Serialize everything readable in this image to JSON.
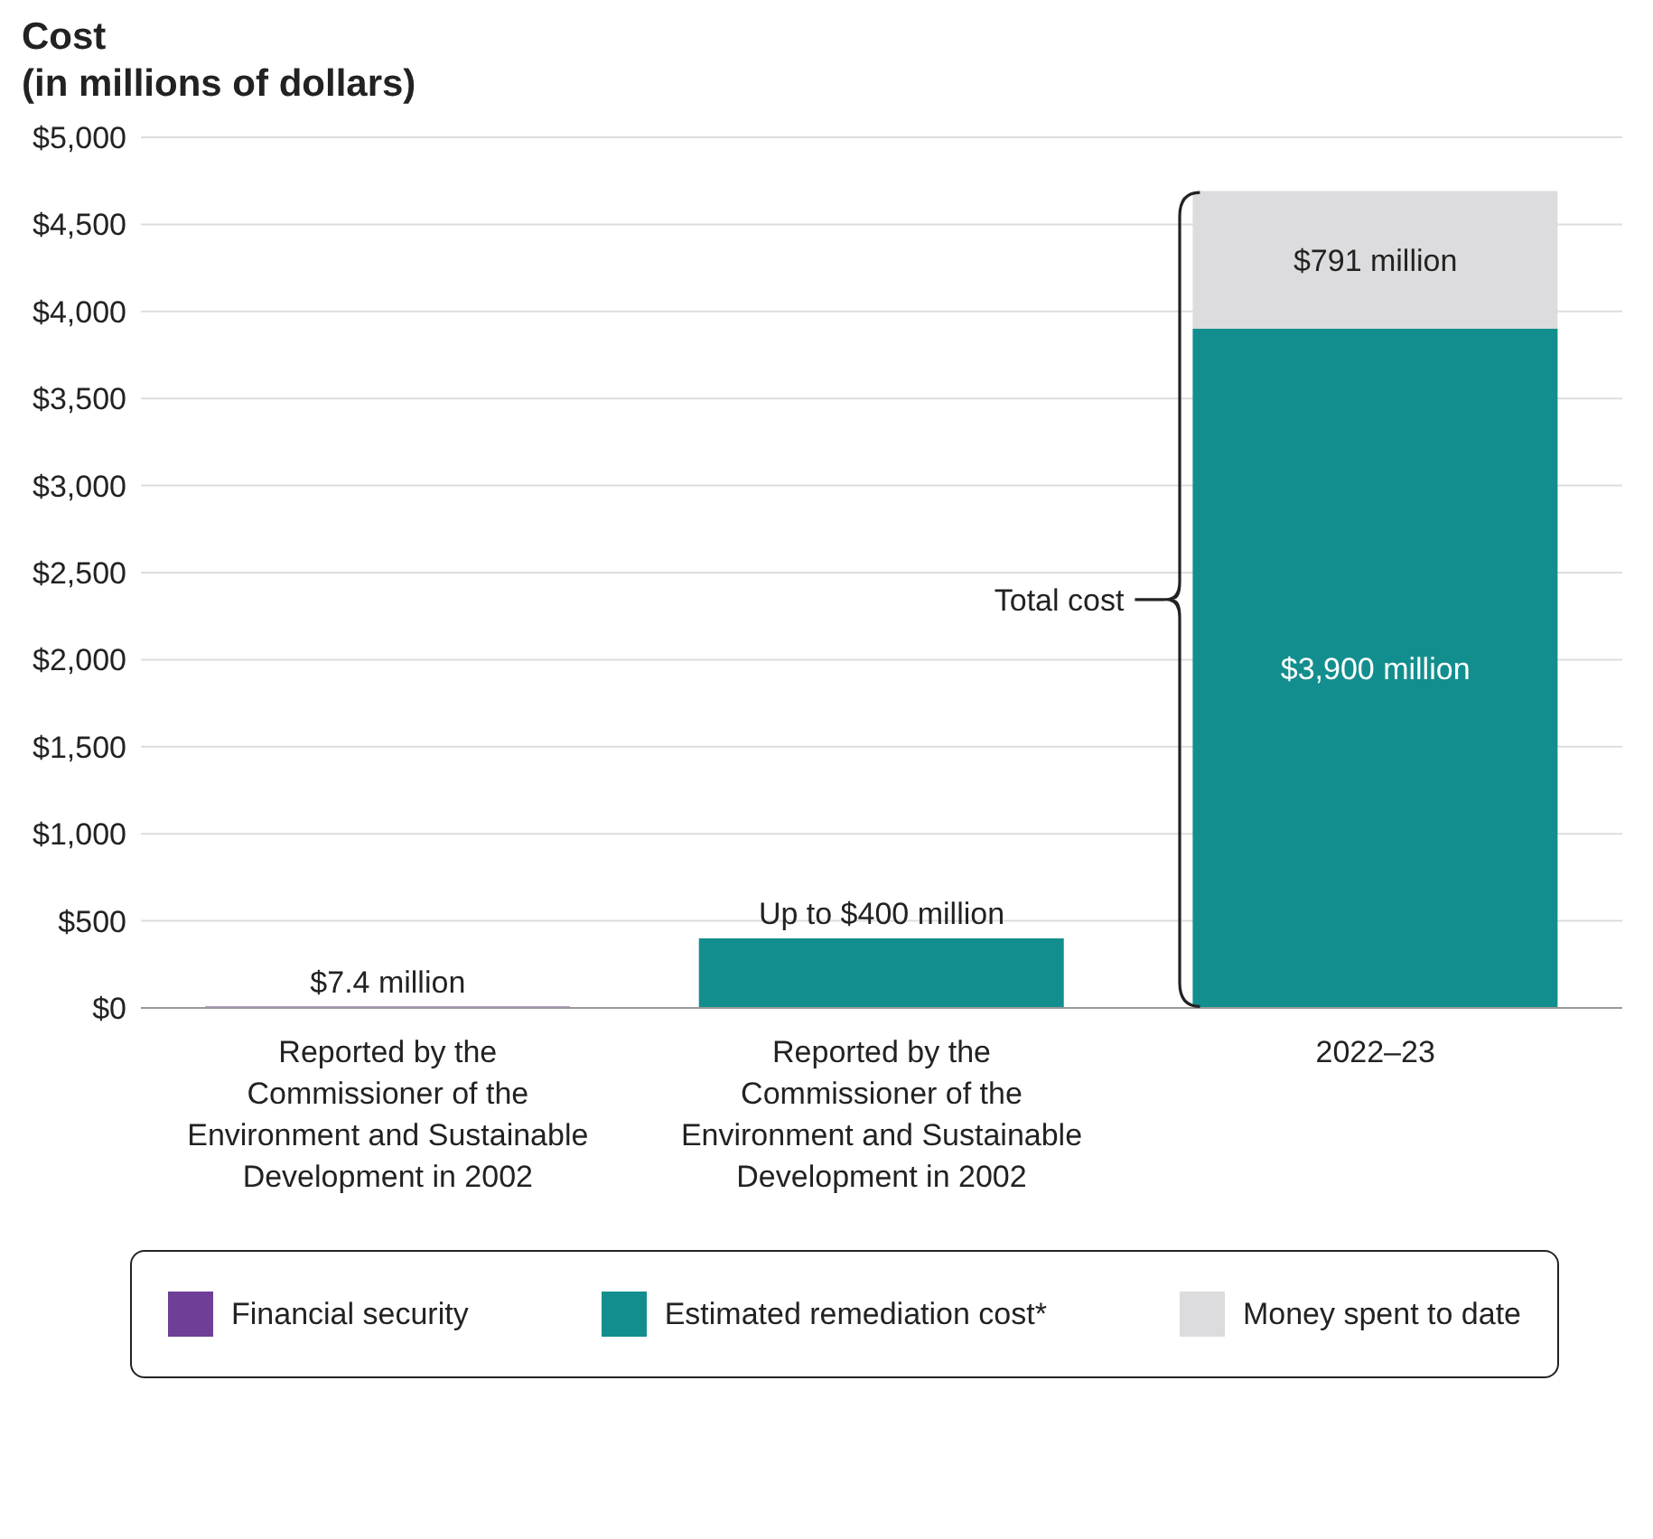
{
  "chart_data": {
    "type": "bar",
    "title": "Cost",
    "subtitle": "(in millions of dollars)",
    "stacked": true,
    "categories": [
      "Reported by the Commissioner of the Environment and Sustainable Development in 2002",
      "Reported by the Commissioner of the Environment and Sustainable Development in 2002",
      "2022–23"
    ],
    "series": [
      {
        "name": "Financial security",
        "color": "#6f3f98",
        "values": [
          7.4,
          null,
          null
        ],
        "value_labels": [
          "$7.4 million",
          null,
          null
        ]
      },
      {
        "name": "Estimated remediation cost*",
        "color": "#138e8e",
        "values": [
          null,
          400,
          3900
        ],
        "value_labels": [
          null,
          "Up to $400 million",
          "$3,900 million"
        ]
      },
      {
        "name": "Money spent to date",
        "color": "#dcdcde",
        "values": [
          null,
          null,
          791
        ],
        "value_labels": [
          null,
          null,
          "$791 million"
        ]
      }
    ],
    "ylim": [
      0,
      5000
    ],
    "yticks": [
      {
        "value": 0,
        "label": "$0"
      },
      {
        "value": 500,
        "label": "$500"
      },
      {
        "value": 1000,
        "label": "$1,000"
      },
      {
        "value": 1500,
        "label": "$1,500"
      },
      {
        "value": 2000,
        "label": "$2,000"
      },
      {
        "value": 2500,
        "label": "$2,500"
      },
      {
        "value": 3000,
        "label": "$3,000"
      },
      {
        "value": 3500,
        "label": "$3,500"
      },
      {
        "value": 4000,
        "label": "$4,000"
      },
      {
        "value": 4500,
        "label": "$4,500"
      },
      {
        "value": 5000,
        "label": "$5,000"
      }
    ],
    "grid": "y",
    "legend": "bottom",
    "annotations": [
      "Total cost"
    ]
  }
}
